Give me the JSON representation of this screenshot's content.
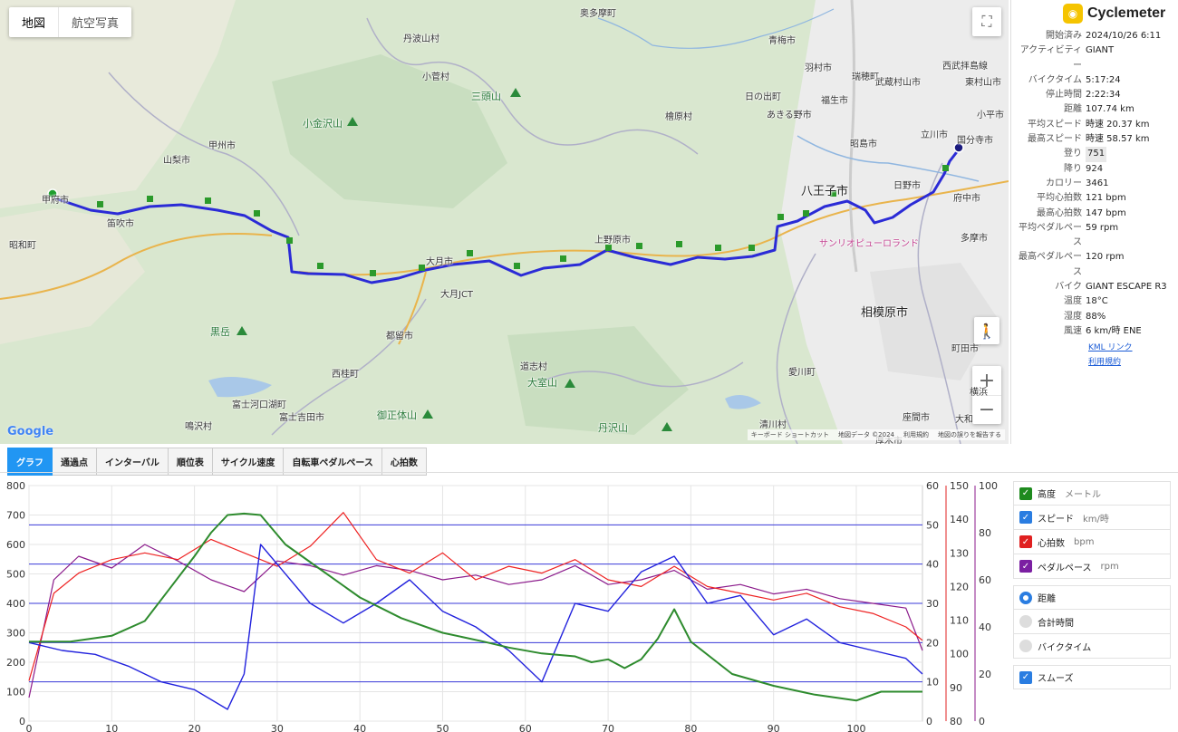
{
  "map": {
    "types": [
      "地図",
      "航空写真"
    ],
    "google": "Google",
    "attribution": [
      "キーボード ショートカット",
      "地図データ ©2024",
      "利用規約",
      "地図の誤りを報告する"
    ],
    "labels": [
      {
        "t": "奥多摩町",
        "c": "city"
      },
      {
        "t": "丹波山村",
        "c": "city"
      },
      {
        "t": "小菅村",
        "c": "city"
      },
      {
        "t": "青梅市",
        "c": "city"
      },
      {
        "t": "羽村市",
        "c": "city"
      },
      {
        "t": "瑞穂町",
        "c": "city"
      },
      {
        "t": "武蔵村山市",
        "c": "city"
      },
      {
        "t": "東村山市",
        "c": "city"
      },
      {
        "t": "日の出町",
        "c": "city"
      },
      {
        "t": "福生市",
        "c": "city"
      },
      {
        "t": "あきる野市",
        "c": "city"
      },
      {
        "t": "檜原村",
        "c": "city"
      },
      {
        "t": "昭島市",
        "c": "city"
      },
      {
        "t": "立川市",
        "c": "city"
      },
      {
        "t": "国分寺市",
        "c": "city"
      },
      {
        "t": "小平市",
        "c": "city"
      },
      {
        "t": "西武拝島線",
        "c": "city"
      },
      {
        "t": "三頭山",
        "c": "mtn"
      },
      {
        "t": "小金沢山",
        "c": "mtn"
      },
      {
        "t": "甲州市",
        "c": "city"
      },
      {
        "t": "山梨市",
        "c": "city"
      },
      {
        "t": "甲府市",
        "c": "city"
      },
      {
        "t": "笛吹市",
        "c": "city"
      },
      {
        "t": "昭和町",
        "c": "city"
      },
      {
        "t": "上野原市",
        "c": "city"
      },
      {
        "t": "大月市",
        "c": "city"
      },
      {
        "t": "八王子市",
        "c": "big"
      },
      {
        "t": "日野市",
        "c": "city"
      },
      {
        "t": "府中市",
        "c": "city"
      },
      {
        "t": "多摩市",
        "c": "city"
      },
      {
        "t": "サンリオピューロランド",
        "c": "pink"
      },
      {
        "t": "相模原市",
        "c": "big"
      },
      {
        "t": "黒岳",
        "c": "mtn"
      },
      {
        "t": "都留市",
        "c": "city"
      },
      {
        "t": "西桂町",
        "c": "city"
      },
      {
        "t": "富士河口湖町",
        "c": "city"
      },
      {
        "t": "富士吉田市",
        "c": "city"
      },
      {
        "t": "鳴沢村",
        "c": "city"
      },
      {
        "t": "道志村",
        "c": "city"
      },
      {
        "t": "大室山",
        "c": "mtn"
      },
      {
        "t": "御正体山",
        "c": "mtn"
      },
      {
        "t": "丹沢山",
        "c": "mtn"
      },
      {
        "t": "愛川町",
        "c": "city"
      },
      {
        "t": "清川村",
        "c": "city"
      },
      {
        "t": "町田市",
        "c": "city"
      },
      {
        "t": "座間市",
        "c": "city"
      },
      {
        "t": "大和",
        "c": "city"
      },
      {
        "t": "厚木市",
        "c": "city"
      },
      {
        "t": "横浜",
        "c": "city"
      },
      {
        "t": "大月JCT",
        "c": "city"
      }
    ]
  },
  "side": {
    "app_name": "Cyclemeter",
    "stats": [
      {
        "k": "開始済み",
        "v": "2024/10/26 6:11"
      },
      {
        "k": "アクティビティー",
        "v": "GIANT"
      },
      {
        "k": "バイクタイム",
        "v": "5:17:24"
      },
      {
        "k": "停止時間",
        "v": "2:22:34"
      },
      {
        "k": "距離",
        "v": "107.74 km"
      },
      {
        "k": "平均スピード",
        "v": "時速 20.37 km"
      },
      {
        "k": "最高スピード",
        "v": "時速 58.57 km"
      },
      {
        "k": "登り",
        "v": "751"
      },
      {
        "k": "降り",
        "v": "924"
      },
      {
        "k": "カロリー",
        "v": "3461"
      },
      {
        "k": "平均心拍数",
        "v": "121 bpm"
      },
      {
        "k": "最高心拍数",
        "v": "147 bpm"
      },
      {
        "k": "平均ペダルペース",
        "v": "59 rpm"
      },
      {
        "k": "最高ペダルペース",
        "v": "120 rpm"
      },
      {
        "k": "バイク",
        "v": "GIANT ESCAPE R3"
      },
      {
        "k": "温度",
        "v": "18°C"
      },
      {
        "k": "湿度",
        "v": "88%"
      },
      {
        "k": "風速",
        "v": "6 km/時 ENE"
      }
    ],
    "kml_link": "KML リンク",
    "terms_link": "利用規約"
  },
  "tabs": [
    "グラフ",
    "通過点",
    "インターバル",
    "順位表",
    "サイクル速度",
    "自転車ペダルペース",
    "心拍数"
  ],
  "legend": {
    "series": [
      {
        "name": "高度",
        "unit": "メートル",
        "color": "#2e8b2e"
      },
      {
        "name": "スピード",
        "unit": "km/時",
        "color": "#2a7de1"
      },
      {
        "name": "心拍数",
        "unit": "bpm",
        "color": "#e02020"
      },
      {
        "name": "ペダルペース",
        "unit": "rpm",
        "color": "#7b1fa2"
      }
    ],
    "axis_options": [
      {
        "name": "距離",
        "selected": true
      },
      {
        "name": "合計時間",
        "selected": false
      },
      {
        "name": "バイクタイム",
        "selected": false
      }
    ],
    "smooth": "スムーズ"
  },
  "chart_data": {
    "type": "line",
    "x_ticks": [
      0,
      10,
      20,
      30,
      40,
      50,
      60,
      70,
      80,
      90,
      100
    ],
    "xlim": [
      0,
      108
    ],
    "axes": [
      {
        "series": "高度",
        "ticks": [
          0,
          100,
          200,
          300,
          400,
          500,
          600,
          700,
          800
        ],
        "lim": [
          0,
          800
        ]
      },
      {
        "series": "スピード",
        "ticks": [
          0,
          10,
          20,
          30,
          40,
          50,
          60
        ],
        "lim": [
          0,
          60
        ]
      },
      {
        "series": "心拍数",
        "ticks": [
          80,
          90,
          100,
          110,
          120,
          130,
          140,
          150
        ],
        "lim": [
          80,
          150
        ]
      },
      {
        "series": "ペダルペース",
        "ticks": [
          0,
          20,
          40,
          60,
          80,
          100
        ],
        "lim": [
          0,
          100
        ]
      }
    ],
    "series": [
      {
        "name": "高度",
        "color": "#2e8b2e",
        "x": [
          0,
          5,
          10,
          14,
          17,
          20,
          22,
          24,
          26,
          28,
          31,
          35,
          40,
          45,
          50,
          55,
          58,
          62,
          66,
          68,
          70,
          72,
          74,
          76,
          78,
          80,
          85,
          90,
          95,
          100,
          103,
          108
        ],
        "y": [
          270,
          270,
          290,
          340,
          450,
          560,
          640,
          700,
          705,
          700,
          600,
          520,
          420,
          350,
          300,
          270,
          250,
          230,
          220,
          200,
          210,
          180,
          210,
          280,
          380,
          270,
          160,
          120,
          90,
          70,
          100,
          100
        ]
      },
      {
        "name": "スピード",
        "color": "#2222dd",
        "x": [
          0,
          4,
          8,
          12,
          16,
          20,
          24,
          26,
          28,
          30,
          34,
          38,
          42,
          46,
          50,
          54,
          58,
          62,
          66,
          70,
          74,
          78,
          82,
          86,
          90,
          94,
          98,
          102,
          106,
          108
        ],
        "y": [
          20,
          18,
          17,
          14,
          10,
          8,
          3,
          12,
          45,
          40,
          30,
          25,
          30,
          36,
          28,
          24,
          18,
          10,
          30,
          28,
          38,
          42,
          30,
          32,
          22,
          26,
          20,
          18,
          16,
          12
        ]
      },
      {
        "name": "心拍数",
        "color": "#ee2222",
        "x": [
          0,
          3,
          6,
          10,
          14,
          18,
          22,
          26,
          30,
          34,
          38,
          42,
          46,
          50,
          54,
          58,
          62,
          66,
          70,
          74,
          78,
          82,
          86,
          90,
          94,
          98,
          102,
          106,
          108
        ],
        "y": [
          92,
          118,
          124,
          128,
          130,
          128,
          134,
          130,
          126,
          132,
          142,
          128,
          124,
          130,
          122,
          126,
          124,
          128,
          122,
          120,
          126,
          120,
          118,
          116,
          118,
          114,
          112,
          108,
          104
        ]
      },
      {
        "name": "ペダルペース",
        "color": "#8b1a8b",
        "x": [
          0,
          3,
          6,
          10,
          14,
          18,
          22,
          26,
          30,
          34,
          38,
          42,
          46,
          50,
          54,
          58,
          62,
          66,
          70,
          74,
          78,
          82,
          86,
          90,
          94,
          98,
          102,
          106,
          108
        ],
        "y": [
          10,
          60,
          70,
          65,
          75,
          68,
          60,
          55,
          68,
          66,
          62,
          66,
          64,
          60,
          62,
          58,
          60,
          66,
          58,
          60,
          64,
          56,
          58,
          54,
          56,
          52,
          50,
          48,
          30
        ]
      }
    ]
  }
}
